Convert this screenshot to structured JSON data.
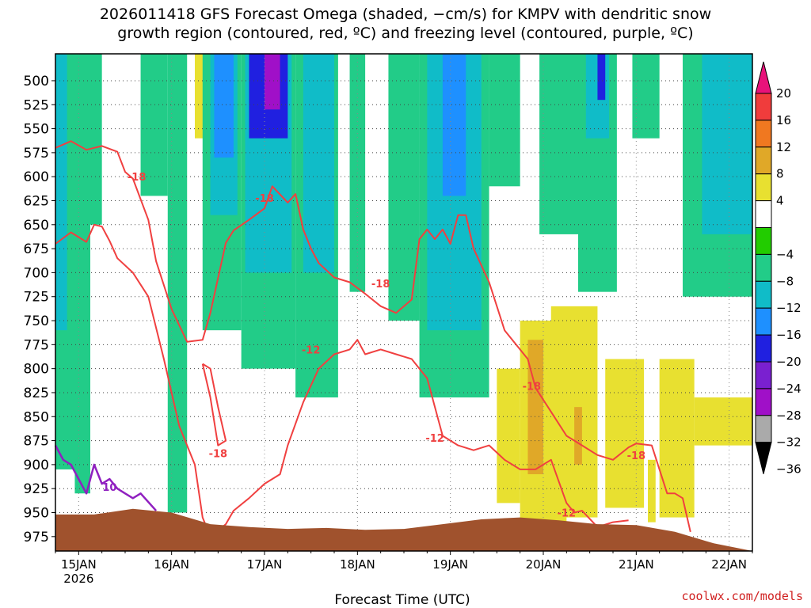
{
  "title": {
    "line1": "2026011418 GFS Forecast Omega (shaded, −cm/s) for KMPV with dendritic snow",
    "line2": "growth region (contoured, red, ºC) and freezing level (contoured, purple, ºC)"
  },
  "credit": "coolwx.com/models",
  "colors": {
    "ground": "#a0522d",
    "dgz_contour": "#f04040",
    "freezing_contour": "#9020c0",
    "grid": "#444444"
  },
  "chart_data": {
    "type": "heatmap",
    "title": "2026011418 GFS Forecast Omega (shaded, −cm/s) for KMPV with dendritic snow growth region (contoured, red, ºC) and freezing level (contoured, purple, ºC)",
    "xlabel": "Forecast Time (UTC)",
    "ylabel": "",
    "x_ticks": [
      "15JAN",
      "16JAN",
      "17JAN",
      "18JAN",
      "19JAN",
      "20JAN",
      "21JAN",
      "22JAN"
    ],
    "x_tick_sublabel": "2026",
    "x_range_hours": [
      0,
      180
    ],
    "y_ticks": [
      500,
      525,
      550,
      575,
      600,
      625,
      650,
      675,
      700,
      725,
      750,
      775,
      800,
      825,
      850,
      875,
      900,
      925,
      950,
      975
    ],
    "y_range": [
      472,
      990
    ],
    "colorbar": {
      "labels": [
        "20",
        "16",
        "12",
        "8",
        "4",
        "−4",
        "−8",
        "−12",
        "−16",
        "−20",
        "−24",
        "−28",
        "−32",
        "−36"
      ],
      "bins": [
        {
          "range": "20+",
          "color": "#e8127a"
        },
        {
          "range": "16 to 20",
          "color": "#f03c3c"
        },
        {
          "range": "12 to 16",
          "color": "#f07820"
        },
        {
          "range": "8 to 12",
          "color": "#e0a828"
        },
        {
          "range": "4 to 8",
          "color": "#e8e030"
        },
        {
          "range": "-4 to 4",
          "color": "#ffffff"
        },
        {
          "range": "-8 to -4",
          "color": "#22cc00"
        },
        {
          "range": "-12 to -8",
          "color": "#22cc88"
        },
        {
          "range": "-16 to -12",
          "color": "#10bcc8"
        },
        {
          "range": "-20 to -16",
          "color": "#1e90ff"
        },
        {
          "range": "-24 to -20",
          "color": "#2020e0"
        },
        {
          "range": "-28 to -24",
          "color": "#7a20d0"
        },
        {
          "range": "-32 to -28",
          "color": "#a010c8"
        },
        {
          "range": "-36 to -32",
          "color": "#aaaaaa"
        },
        {
          "range": "<-36",
          "color": "#000000"
        }
      ]
    },
    "omega_regions": [
      {
        "t0": 0,
        "t1": 9,
        "p_top": 472,
        "p_bot": 905,
        "value": -8
      },
      {
        "t0": 0,
        "t1": 3,
        "p_top": 472,
        "p_bot": 760,
        "value": -14
      },
      {
        "t0": 5,
        "t1": 9,
        "p_top": 700,
        "p_bot": 930,
        "value": -8
      },
      {
        "t0": 9,
        "t1": 12,
        "p_top": 472,
        "p_bot": 650,
        "value": -8
      },
      {
        "t0": 22,
        "t1": 29,
        "p_top": 472,
        "p_bot": 620,
        "value": -8
      },
      {
        "t0": 29,
        "t1": 34,
        "p_top": 472,
        "p_bot": 950,
        "value": -8
      },
      {
        "t0": 36,
        "t1": 40,
        "p_top": 472,
        "p_bot": 560,
        "value": 6
      },
      {
        "t0": 38,
        "t1": 48,
        "p_top": 472,
        "p_bot": 760,
        "value": -8
      },
      {
        "t0": 40,
        "t1": 47,
        "p_top": 472,
        "p_bot": 640,
        "value": -14
      },
      {
        "t0": 41,
        "t1": 46,
        "p_top": 472,
        "p_bot": 580,
        "value": -18
      },
      {
        "t0": 48,
        "t1": 62,
        "p_top": 472,
        "p_bot": 800,
        "value": -8
      },
      {
        "t0": 49,
        "t1": 61,
        "p_top": 472,
        "p_bot": 700,
        "value": -14
      },
      {
        "t0": 50,
        "t1": 60,
        "p_top": 472,
        "p_bot": 560,
        "value": -22
      },
      {
        "t0": 54,
        "t1": 58,
        "p_top": 472,
        "p_bot": 530,
        "value": -30
      },
      {
        "t0": 62,
        "t1": 73,
        "p_top": 472,
        "p_bot": 830,
        "value": -8
      },
      {
        "t0": 64,
        "t1": 72,
        "p_top": 472,
        "p_bot": 700,
        "value": -14
      },
      {
        "t0": 76,
        "t1": 80,
        "p_top": 472,
        "p_bot": 720,
        "value": -8
      },
      {
        "t0": 86,
        "t1": 94,
        "p_top": 472,
        "p_bot": 750,
        "value": -8
      },
      {
        "t0": 94,
        "t1": 112,
        "p_top": 472,
        "p_bot": 830,
        "value": -8
      },
      {
        "t0": 96,
        "t1": 110,
        "p_top": 472,
        "p_bot": 760,
        "value": -14
      },
      {
        "t0": 100,
        "t1": 106,
        "p_top": 472,
        "p_bot": 620,
        "value": -18
      },
      {
        "t0": 112,
        "t1": 120,
        "p_top": 472,
        "p_bot": 610,
        "value": -8
      },
      {
        "t0": 125,
        "t1": 135,
        "p_top": 472,
        "p_bot": 660,
        "value": -8
      },
      {
        "t0": 135,
        "t1": 145,
        "p_top": 472,
        "p_bot": 720,
        "value": -8
      },
      {
        "t0": 137,
        "t1": 143,
        "p_top": 472,
        "p_bot": 560,
        "value": -14
      },
      {
        "t0": 140,
        "t1": 142,
        "p_top": 472,
        "p_bot": 520,
        "value": -22
      },
      {
        "t0": 149,
        "t1": 156,
        "p_top": 472,
        "p_bot": 560,
        "value": -8
      },
      {
        "t0": 162,
        "t1": 180,
        "p_top": 472,
        "p_bot": 725,
        "value": -8
      },
      {
        "t0": 167,
        "t1": 180,
        "p_top": 472,
        "p_bot": 660,
        "value": -12
      },
      {
        "t0": 114,
        "t1": 120,
        "p_top": 800,
        "p_bot": 940,
        "value": 6
      },
      {
        "t0": 120,
        "t1": 132,
        "p_top": 750,
        "p_bot": 960,
        "value": 6
      },
      {
        "t0": 122,
        "t1": 126,
        "p_top": 770,
        "p_bot": 910,
        "value": 10
      },
      {
        "t0": 128,
        "t1": 140,
        "p_top": 735,
        "p_bot": 955,
        "value": 6
      },
      {
        "t0": 134,
        "t1": 136,
        "p_top": 840,
        "p_bot": 900,
        "value": 10
      },
      {
        "t0": 142,
        "t1": 152,
        "p_top": 790,
        "p_bot": 945,
        "value": 6
      },
      {
        "t0": 156,
        "t1": 165,
        "p_top": 790,
        "p_bot": 955,
        "value": 6
      },
      {
        "t0": 165,
        "t1": 180,
        "p_top": 830,
        "p_bot": 880,
        "value": 6
      },
      {
        "t0": 153,
        "t1": 155,
        "p_top": 895,
        "p_bot": 960,
        "value": 6
      }
    ],
    "dgz_upper_contour": {
      "t": [
        0,
        4,
        8,
        12,
        16,
        18,
        20,
        24,
        26,
        30,
        34,
        38,
        40,
        44,
        46,
        50,
        54,
        56,
        60,
        62,
        64,
        66,
        68,
        72,
        76,
        80,
        84,
        88,
        92,
        94,
        96,
        98,
        100,
        102,
        104,
        106,
        108,
        112,
        116,
        122,
        124,
        128,
        132,
        136,
        140,
        144,
        148,
        150,
        154,
        158,
        160,
        162,
        164
      ],
      "p": [
        570,
        563,
        572,
        568,
        574,
        595,
        602,
        645,
        688,
        738,
        772,
        770,
        742,
        669,
        656,
        645,
        633,
        610,
        627,
        618,
        655,
        675,
        690,
        705,
        710,
        722,
        735,
        742,
        728,
        665,
        655,
        665,
        655,
        670,
        640,
        640,
        675,
        710,
        760,
        790,
        820,
        845,
        870,
        880,
        890,
        895,
        882,
        878,
        880,
        930,
        930,
        935,
        970
      ]
    },
    "dgz_lower_contour": {
      "t": [
        0,
        4,
        8,
        10,
        12,
        14,
        16,
        20,
        24,
        28,
        32,
        36,
        38,
        40,
        44,
        46,
        50,
        54,
        58,
        60,
        64,
        68,
        72,
        76,
        78,
        80,
        84,
        88,
        92,
        96,
        98,
        100,
        104,
        108,
        112,
        116,
        120,
        124,
        128,
        132,
        134,
        136,
        140,
        144,
        148
      ],
      "p": [
        670,
        658,
        668,
        650,
        652,
        667,
        685,
        700,
        725,
        790,
        860,
        900,
        955,
        975,
        962,
        948,
        935,
        920,
        910,
        880,
        835,
        800,
        785,
        780,
        770,
        785,
        780,
        785,
        790,
        810,
        840,
        870,
        880,
        885,
        880,
        895,
        905,
        905,
        895,
        940,
        950,
        948,
        965,
        960,
        958
      ]
    },
    "dgz_small_contour": {
      "t": [
        38,
        40,
        42,
        44,
        42,
        40,
        38
      ],
      "p": [
        795,
        830,
        880,
        875,
        840,
        800,
        795
      ]
    },
    "freezing_contour": {
      "t": [
        0,
        2,
        4,
        6,
        8,
        10,
        12,
        14,
        16,
        18,
        20,
        22,
        26
      ],
      "p": [
        880,
        895,
        900,
        915,
        930,
        900,
        920,
        915,
        925,
        930,
        935,
        930,
        948
      ]
    },
    "contour_labels": [
      {
        "text": "-18",
        "t": 21,
        "p": 600
      },
      {
        "text": "-18",
        "t": 54,
        "p": 622
      },
      {
        "text": "-18",
        "t": 84,
        "p": 711
      },
      {
        "text": "-12",
        "t": 66,
        "p": 780
      },
      {
        "text": "-18",
        "t": 42,
        "p": 888
      },
      {
        "text": "-12",
        "t": 98,
        "p": 872
      },
      {
        "text": "-18",
        "t": 123,
        "p": 818
      },
      {
        "text": "-12",
        "t": 132,
        "p": 950
      },
      {
        "text": "-18",
        "t": 150,
        "p": 890
      },
      {
        "text": "10",
        "t": 14,
        "p": 923
      }
    ],
    "ground_surface": {
      "t": [
        0,
        10,
        20,
        30,
        40,
        50,
        60,
        70,
        80,
        90,
        100,
        110,
        120,
        130,
        140,
        150,
        160,
        170,
        180
      ],
      "p": [
        952,
        952,
        946,
        950,
        962,
        965,
        967,
        966,
        968,
        967,
        962,
        957,
        955,
        958,
        962,
        963,
        970,
        982,
        992
      ]
    }
  }
}
